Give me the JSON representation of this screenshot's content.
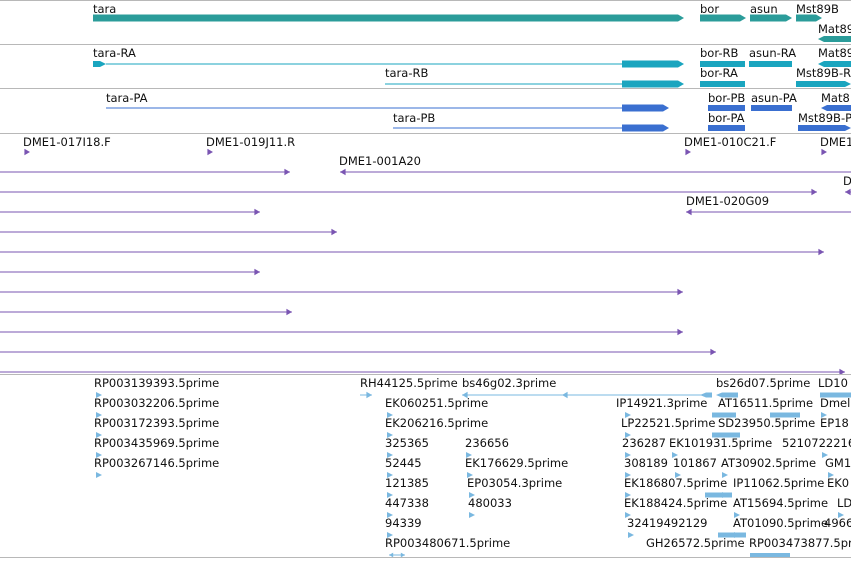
{
  "colors": {
    "gene_teal": "#2b9c9a",
    "transcript_cyan": "#1aa5bf",
    "protein_blue": "#3a6fd0",
    "clone_purple": "#7a55b2",
    "est_lightblue": "#7ab8e0",
    "separator": "#b8b8b8"
  },
  "tracks": {
    "genes": {
      "labels": [
        "tara",
        "bor",
        "asun",
        "Mst89B",
        "Mat89"
      ]
    },
    "transcripts": {
      "labels": [
        "tara-RA",
        "bor-RB",
        "asun-RA",
        "Mat89",
        "tara-RB",
        "bor-RA",
        "Mst89B-R"
      ]
    },
    "proteins": {
      "labels": [
        "tara-PA",
        "bor-PB",
        "asun-PA",
        "Mat8",
        "tara-PB",
        "bor-PA",
        "Mst89B-P"
      ]
    },
    "clones": {
      "labels": [
        "DME1-017I18.F",
        "DME1-019J11.R",
        "DME1-010C21.F",
        "DME1",
        "DME1-001A20",
        "D",
        "DME1-020G09"
      ]
    },
    "ests": {
      "labels": [
        "RP003139393.5prime",
        "RH44125.5prime",
        "bs46g02.3prime",
        "bs26d07.5prime",
        "LD10",
        "RP003032206.5prime",
        "EK060251.5prime",
        "IP14921.3prime",
        "AT16511.5prime",
        "Dmel",
        "RP003172393.5prime",
        "EK206216.5prime",
        "LP22521.5prime",
        "SD23950.5prime",
        "EP18",
        "RP003435969.5prime",
        "325365",
        "236656",
        "236287",
        "EK101931.5prime",
        "5210722216",
        "RP003267146.5prime",
        "52445",
        "EK176629.5prime",
        "308189",
        "101867",
        "AT30902.5prime",
        "GM1",
        "121385",
        "EP03054.3prime",
        "EK186807.5prime",
        "IP11062.5prime",
        "EK0",
        "447338",
        "480033",
        "EK188424.5prime",
        "AT15694.5prime",
        "LD",
        "94339",
        "32419492129",
        "AT01090.5prime",
        "4966",
        "RP003480671.5prime",
        "GH26572.5prime",
        "RP003473877.5prime"
      ]
    }
  }
}
